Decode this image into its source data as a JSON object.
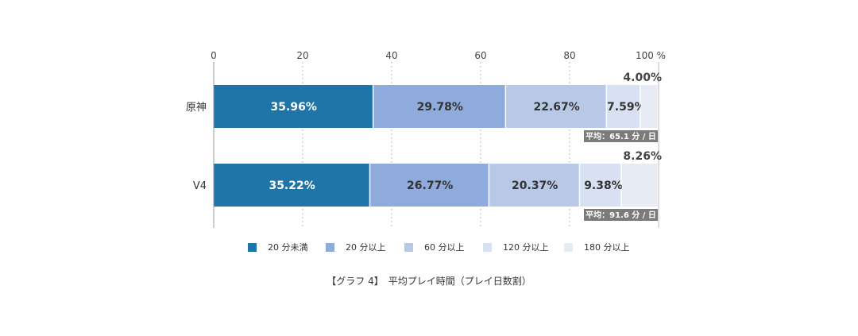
{
  "chart_data": {
    "type": "bar",
    "orientation": "horizontal",
    "stacked": true,
    "xlim": [
      0,
      100
    ],
    "x_ticks": [
      "0",
      "20",
      "40",
      "60",
      "80",
      "100 %"
    ],
    "grid": "vertical-dashed",
    "legend_position": "bottom",
    "categories": [
      "原神",
      "V4"
    ],
    "series": [
      {
        "name": "20 分未満",
        "color": "#1f74a8",
        "values": [
          35.96,
          35.22
        ],
        "labels": [
          "35.96%",
          "35.22%"
        ],
        "label_color": "#ffffff"
      },
      {
        "name": "20 分以上",
        "color": "#8fabdc",
        "values": [
          29.78,
          26.77
        ],
        "labels": [
          "29.78%",
          "26.77%"
        ],
        "label_color": "#333333"
      },
      {
        "name": "60 分以上",
        "color": "#b8c9e8",
        "values": [
          22.67,
          20.37
        ],
        "labels": [
          "22.67%",
          "20.37%"
        ],
        "label_color": "#333333"
      },
      {
        "name": "120 分以上",
        "color": "#d8e1f2",
        "values": [
          7.59,
          9.38
        ],
        "labels": [
          "7.59%",
          "9.38%"
        ],
        "label_color": "#333333"
      },
      {
        "name": "180 分以上",
        "color": "#e6ebf4",
        "values": [
          4.0,
          8.26
        ],
        "labels": [
          "4.00%",
          "8.26%"
        ],
        "label_color": "#444444"
      }
    ],
    "averages": [
      "平均：65.1 分 / 日",
      "平均：91.6 分 / 日"
    ],
    "avg_badge_color": "#7b7b7b",
    "caption": "【グラフ 4】　平均プレイ時間（プレイ日数割）"
  }
}
